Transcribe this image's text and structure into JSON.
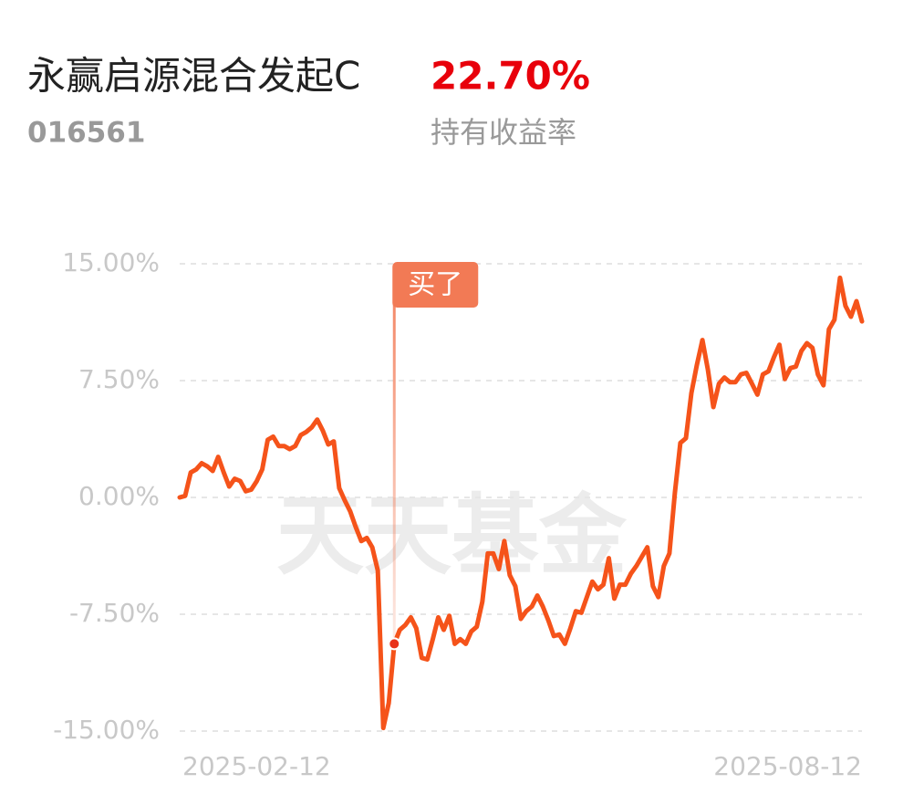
{
  "header": {
    "title": "永赢启源混合发起C",
    "code": "016561",
    "return_value": "22.70%",
    "return_label": "持有收益率"
  },
  "chart_data": {
    "type": "line",
    "watermark": "天天基金",
    "color": "#f5531a",
    "grid": true,
    "categories": [
      "2025-02-12",
      null,
      null,
      null,
      null,
      null,
      null,
      null,
      null,
      null,
      null,
      null,
      null,
      null,
      null,
      null,
      null,
      null,
      null,
      null,
      null,
      null,
      null,
      null,
      null,
      null,
      null,
      null,
      null,
      null,
      null,
      null,
      null,
      null,
      null,
      null,
      null,
      null,
      null,
      null,
      null,
      null,
      null,
      null,
      null,
      null,
      null,
      null,
      null,
      null,
      null,
      null,
      null,
      null,
      null,
      null,
      null,
      null,
      null,
      null,
      null,
      null,
      null,
      null,
      null,
      null,
      null,
      null,
      null,
      null,
      null,
      null,
      null,
      null,
      null,
      null,
      null,
      null,
      null,
      null,
      null,
      null,
      null,
      null,
      null,
      null,
      null,
      null,
      null,
      null,
      null,
      null,
      null,
      null,
      null,
      null,
      null,
      null,
      null,
      null,
      null,
      null,
      null,
      null,
      null,
      null,
      null,
      null,
      null,
      null,
      null,
      null,
      null,
      null,
      null,
      null,
      null,
      null,
      null,
      null,
      null,
      null,
      null,
      null,
      "2025-08-12"
    ],
    "values": [
      0,
      0.1,
      1.6,
      1.8,
      2.2,
      2.0,
      1.7,
      2.6,
      1.6,
      0.7,
      1.2,
      1.05,
      0.4,
      0.5,
      1.05,
      1.8,
      3.7,
      3.9,
      3.3,
      3.3,
      3.1,
      3.3,
      4.0,
      4.2,
      4.5,
      5.0,
      4.3,
      3.4,
      3.6,
      0.6,
      -0.2,
      -0.9,
      -1.9,
      -2.8,
      -2.6,
      -3.2,
      -4.7,
      -14.8,
      -13.2,
      -9.4,
      -8.5,
      -8.2,
      -7.7,
      -8.4,
      -10.3,
      -10.4,
      -9.1,
      -7.7,
      -8.5,
      -7.6,
      -9.4,
      -9.1,
      -9.4,
      -8.6,
      -8.3,
      -6.7,
      -3.6,
      -3.6,
      -4.6,
      -2.8,
      -5.0,
      -5.7,
      -7.8,
      -7.3,
      -7.0,
      -6.3,
      -7.0,
      -7.9,
      -8.9,
      -8.8,
      -9.4,
      -8.4,
      -7.3,
      -7.4,
      -6.4,
      -5.4,
      -5.9,
      -5.6,
      -3.9,
      -6.5,
      -5.6,
      -5.6,
      -4.9,
      -4.4,
      -3.8,
      -3.2,
      -5.7,
      -6.4,
      -4.4,
      -3.6,
      0.3,
      3.5,
      3.8,
      6.7,
      8.5,
      10.1,
      8.2,
      5.8,
      7.3,
      7.7,
      7.4,
      7.4,
      7.9,
      8.0,
      7.3,
      6.6,
      7.9,
      8.1,
      9.0,
      9.8,
      7.6,
      8.3,
      8.4,
      9.4,
      9.9,
      9.6,
      7.9,
      7.2,
      10.8,
      11.4,
      14.1,
      12.3,
      11.6,
      12.6,
      11.3
    ],
    "ylim": [
      -15,
      15
    ],
    "yticks": [
      {
        "value": 15,
        "label": "15.00%"
      },
      {
        "value": 7.5,
        "label": "7.50%"
      },
      {
        "value": 0,
        "label": "0.00%"
      },
      {
        "value": -7.5,
        "label": "-7.50%"
      },
      {
        "value": -15,
        "label": "-15.00%"
      }
    ],
    "annotations": [
      {
        "text": "买了",
        "index": 39
      }
    ]
  }
}
